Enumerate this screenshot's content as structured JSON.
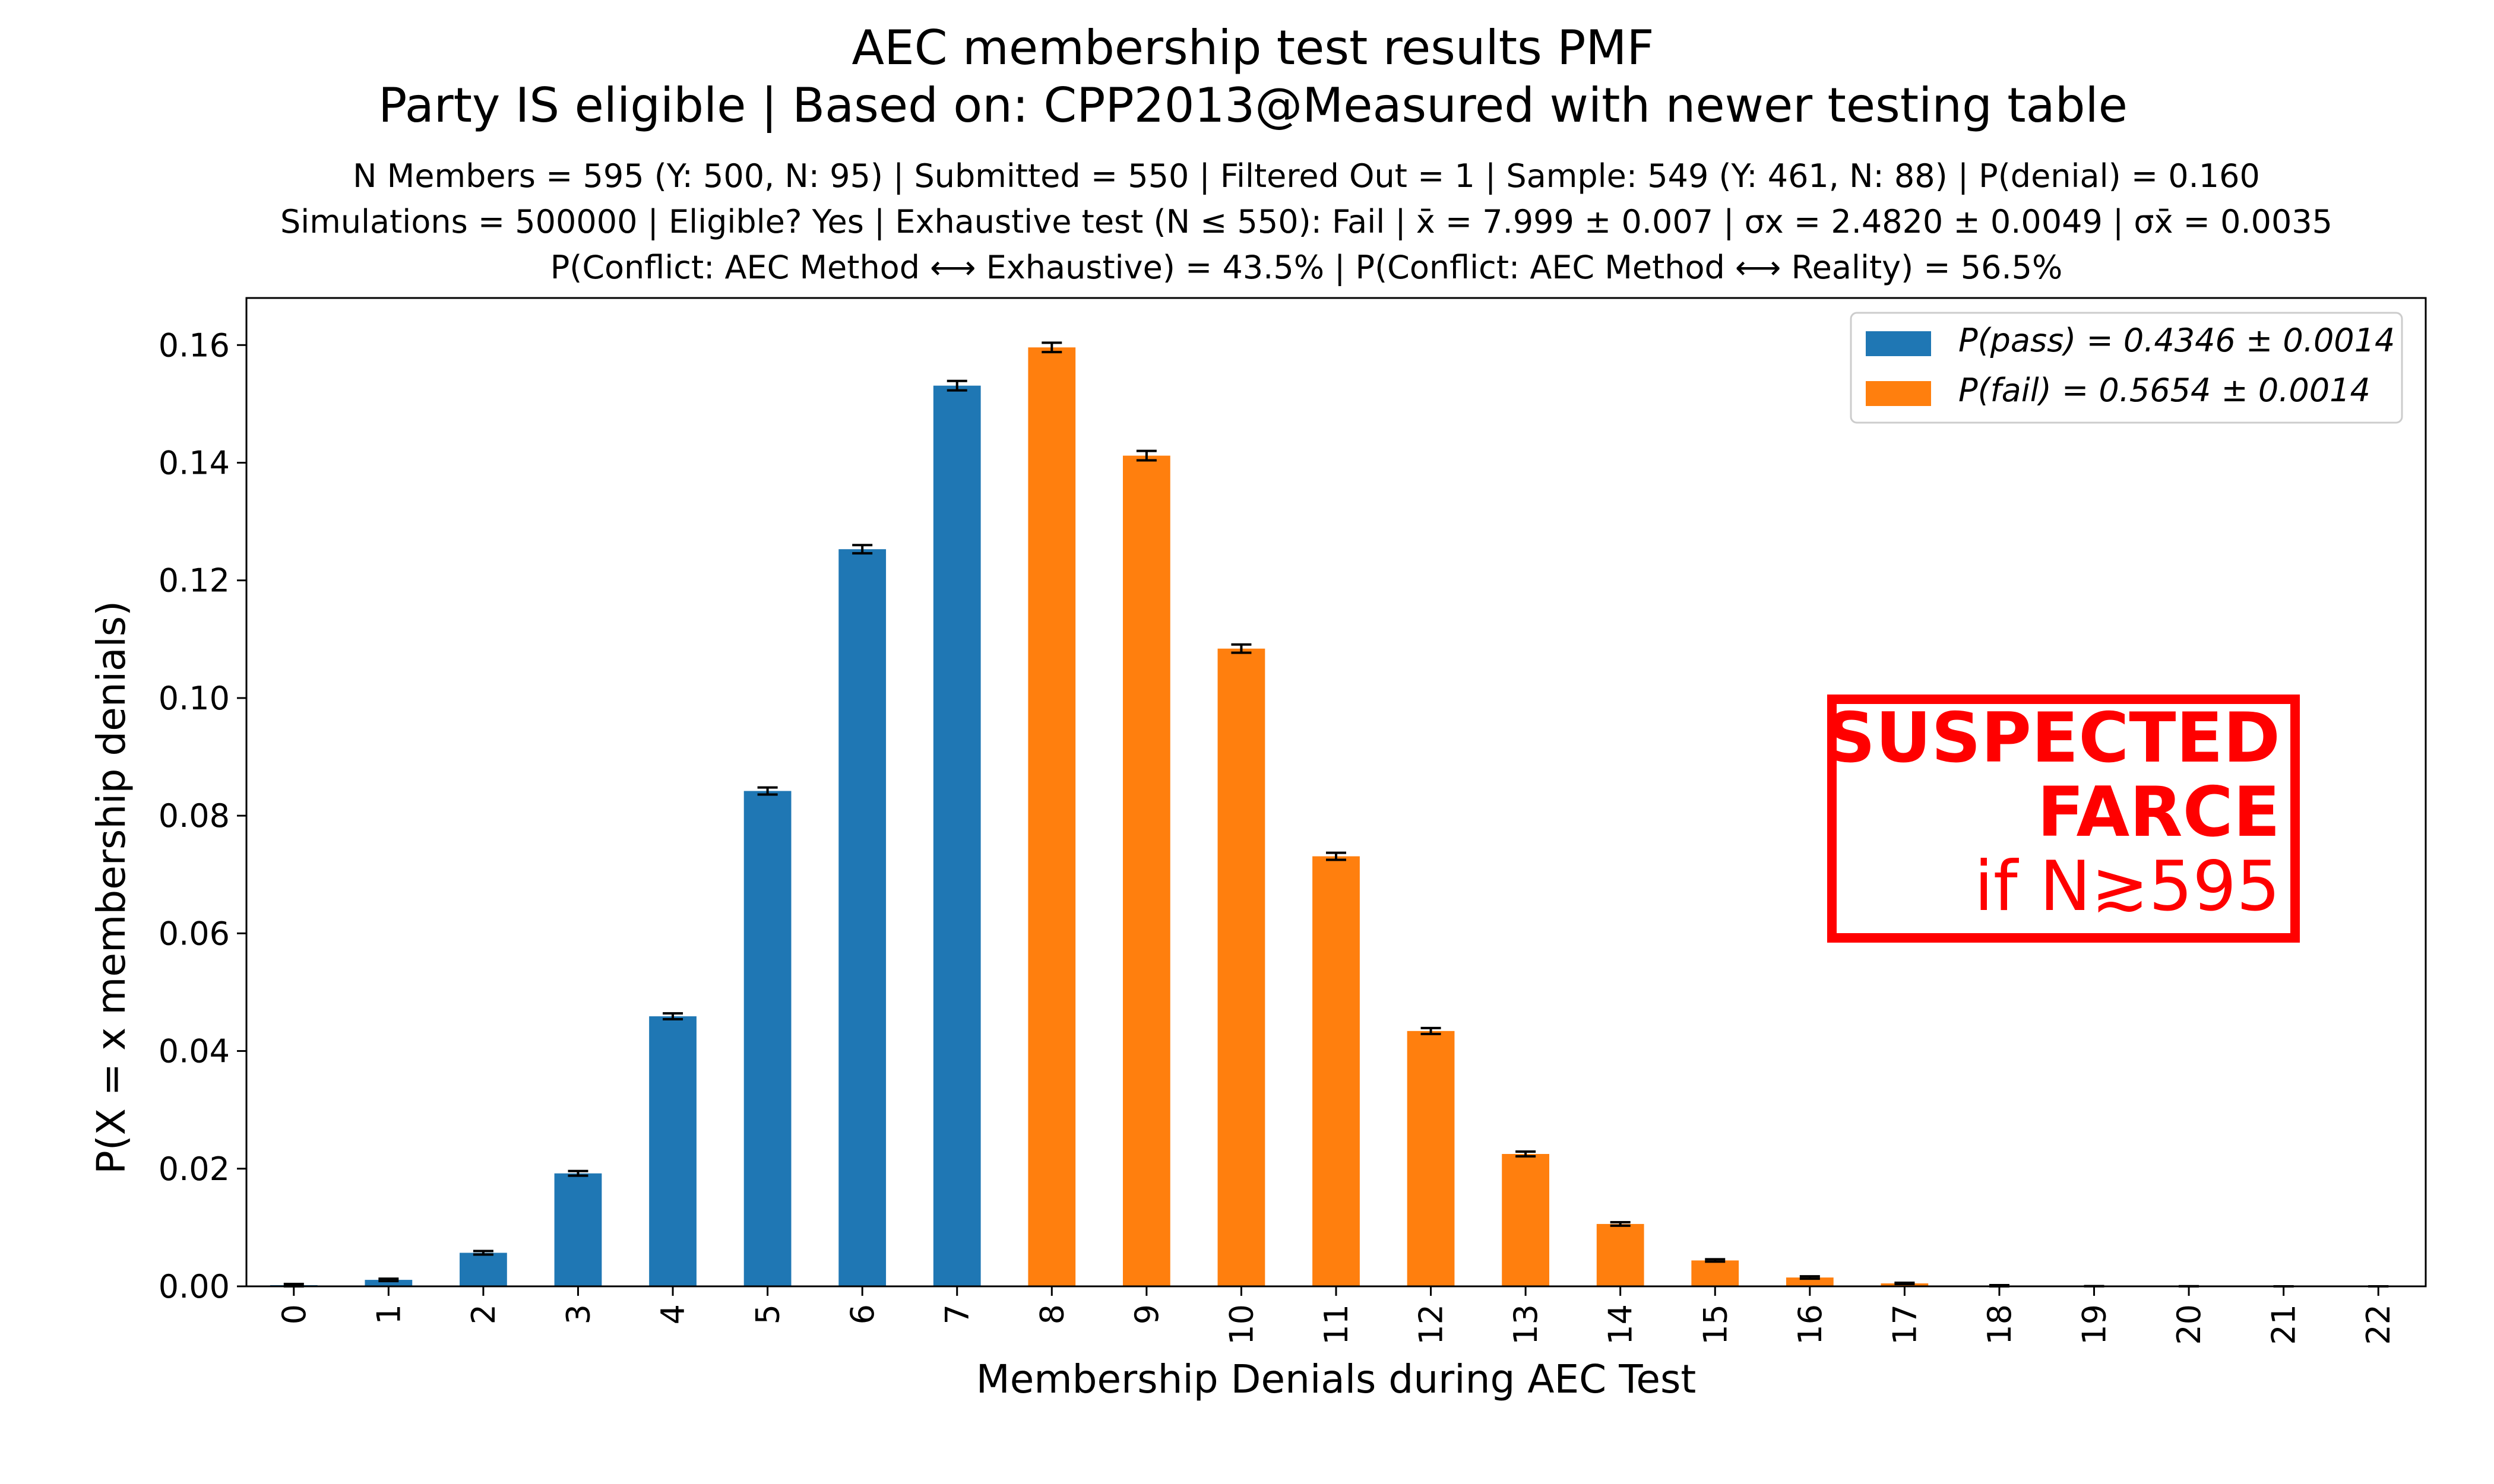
{
  "chart_data": {
    "type": "bar",
    "title_line1": "AEC membership test results PMF",
    "title_line2": "Party IS eligible | Based on: CPP2013@Measured with newer testing table",
    "subtitle_line1": "N Members = 595 (Y: 500, N: 95) | Submitted = 550 | Filtered Out = 1 | Sample: 549 (Y: 461, N: 88) | P(denial) = 0.160",
    "subtitle_line2": "Simulations = 500000 | Eligible? Yes | Exhaustive test (N ≤ 550): Fail | x̄ = 7.999 ± 0.007 | σx = 2.4820 ± 0.0049 | σx̄ = 0.0035",
    "subtitle_line3": "P(Conflict: AEC Method ⟷ Exhaustive) = 43.5% | P(Conflict: AEC Method ⟷ Reality) = 56.5%",
    "xlabel": "Membership Denials during AEC Test",
    "ylabel": "P(X = x membership denials)",
    "categories": [
      "0",
      "1",
      "2",
      "3",
      "4",
      "5",
      "6",
      "7",
      "8",
      "9",
      "10",
      "11",
      "12",
      "13",
      "14",
      "15",
      "16",
      "17",
      "18",
      "19",
      "20",
      "21",
      "22"
    ],
    "values": [
      0.0002,
      0.0011,
      0.0057,
      0.0192,
      0.0459,
      0.0842,
      0.1253,
      0.1531,
      0.1596,
      0.1412,
      0.1084,
      0.0731,
      0.0434,
      0.0225,
      0.0106,
      0.0044,
      0.0015,
      0.0005,
      0.0001,
      3e-05,
      1e-05,
      0.0,
      0.0
    ],
    "errors": [
      0.0002,
      0.0002,
      0.0003,
      0.0004,
      0.0005,
      0.0006,
      0.0007,
      0.0008,
      0.0008,
      0.0008,
      0.0007,
      0.0006,
      0.0005,
      0.0004,
      0.0003,
      0.0002,
      0.0002,
      0.0001,
      0.0001,
      0.0,
      0.0,
      0.0,
      0.0
    ],
    "pass_max_category": 7,
    "colors": {
      "pass": "#1f77b4",
      "fail": "#ff7f0e",
      "error_bar": "#000000",
      "stamp": "#ff0000"
    },
    "ylim": [
      0,
      0.168
    ],
    "yticks": [
      "0.00",
      "0.02",
      "0.04",
      "0.06",
      "0.08",
      "0.10",
      "0.12",
      "0.14",
      "0.16"
    ],
    "legend_position": "top-right",
    "legend": [
      {
        "series": "pass",
        "label": "P(pass) = 0.4346 ± 0.0014"
      },
      {
        "series": "fail",
        "label": "P(fail) = 0.5654 ± 0.0014"
      }
    ],
    "annotation": {
      "line1": "SUSPECTED",
      "line2": "FARCE",
      "line3": "if N≳595"
    },
    "grid": false
  }
}
